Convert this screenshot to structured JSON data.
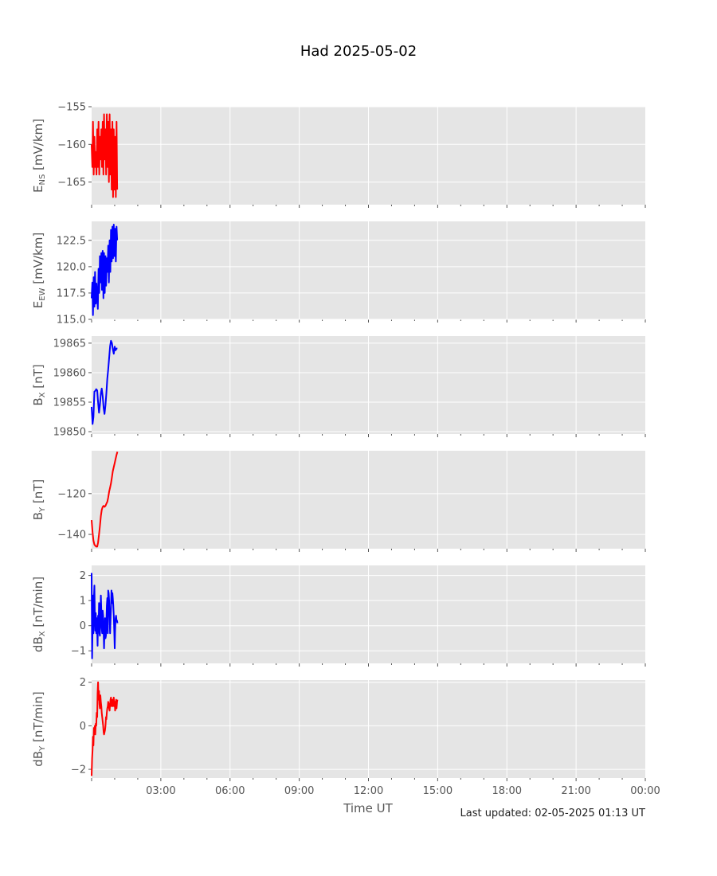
{
  "title": "Had 2025-05-02",
  "xlabel": "Time UT",
  "last_updated": "Last updated: 02-05-2025 01:13 UT",
  "colors": {
    "background": "#e5e5e5",
    "grid": "#ffffff",
    "red": "#ff0000",
    "blue": "#0000ff"
  },
  "chart_data": [
    {
      "type": "line",
      "ylabel": {
        "main": "E",
        "sub": "NS",
        "unit": " [mV/km]"
      },
      "color": "#ff0000",
      "xlim": [
        0,
        24
      ],
      "ylim": [
        -168,
        -155
      ],
      "yticks": [
        -155,
        -160,
        -165
      ],
      "ytick_labels": [
        "−155",
        "−160",
        "−165"
      ],
      "series": [
        {
          "x": [
            0.0,
            0.03,
            0.06,
            0.09,
            0.12,
            0.15,
            0.18,
            0.21,
            0.24,
            0.27,
            0.3,
            0.33,
            0.36,
            0.39,
            0.42,
            0.45,
            0.48,
            0.51,
            0.54,
            0.57,
            0.6,
            0.63,
            0.66,
            0.69,
            0.72,
            0.75,
            0.78,
            0.81,
            0.84,
            0.87,
            0.9,
            0.93,
            0.96,
            0.99,
            1.02,
            1.05,
            1.08,
            1.11
          ],
          "y": [
            -160,
            -163,
            -157,
            -164,
            -159,
            -163,
            -161,
            -164,
            -158,
            -163,
            -157,
            -164,
            -159,
            -162,
            -158,
            -163,
            -157,
            -164,
            -156,
            -162,
            -158,
            -164,
            -156,
            -163,
            -157,
            -165,
            -156,
            -164,
            -158,
            -166,
            -157,
            -167,
            -158,
            -166,
            -159,
            -167,
            -157,
            -166
          ]
        }
      ]
    },
    {
      "type": "line",
      "ylabel": {
        "main": "E",
        "sub": "EW",
        "unit": " [mV/km]"
      },
      "color": "#0000ff",
      "xlim": [
        0,
        24
      ],
      "ylim": [
        115,
        124.3
      ],
      "yticks": [
        115.0,
        117.5,
        120.0,
        122.5
      ],
      "ytick_labels": [
        "115.0",
        "117.5",
        "120.0",
        "122.5"
      ],
      "series": [
        {
          "x": [
            0.0,
            0.03,
            0.06,
            0.09,
            0.12,
            0.15,
            0.18,
            0.21,
            0.24,
            0.27,
            0.3,
            0.33,
            0.36,
            0.39,
            0.42,
            0.45,
            0.48,
            0.51,
            0.54,
            0.57,
            0.6,
            0.63,
            0.66,
            0.69,
            0.72,
            0.75,
            0.78,
            0.81,
            0.84,
            0.87,
            0.9,
            0.93,
            0.96,
            0.99,
            1.02,
            1.05,
            1.08,
            1.11
          ],
          "y": [
            117,
            118.5,
            115.4,
            119,
            116.2,
            119.5,
            116.5,
            118.4,
            117,
            116,
            119.8,
            117.5,
            121,
            118.5,
            121.3,
            117.8,
            121.5,
            117,
            121.3,
            117.5,
            121,
            118.2,
            120.8,
            119.5,
            122,
            118.5,
            122.5,
            119.5,
            123.5,
            120.5,
            123.8,
            120.8,
            124,
            121,
            123.6,
            120.5,
            123.8,
            122.5
          ]
        }
      ]
    },
    {
      "type": "line",
      "ylabel": {
        "main": "B",
        "sub": "X",
        "unit": " [nT]"
      },
      "color": "#0000ff",
      "xlim": [
        0,
        24
      ],
      "ylim": [
        19849.6,
        19866.2
      ],
      "yticks": [
        19850,
        19855,
        19860,
        19865
      ],
      "ytick_labels": [
        "19850",
        "19855",
        "19860",
        "19865"
      ],
      "series": [
        {
          "x": [
            0.0,
            0.04,
            0.08,
            0.12,
            0.16,
            0.2,
            0.24,
            0.28,
            0.32,
            0.36,
            0.4,
            0.44,
            0.48,
            0.52,
            0.56,
            0.6,
            0.64,
            0.68,
            0.72,
            0.76,
            0.8,
            0.84,
            0.88,
            0.92,
            0.96,
            1.0,
            1.04,
            1.08,
            1.12
          ],
          "y": [
            19854.2,
            19851.3,
            19852.5,
            19856.8,
            19856.9,
            19857.2,
            19857,
            19855,
            19853.2,
            19854.5,
            19856.5,
            19857.3,
            19856,
            19854,
            19853,
            19854.5,
            19856.5,
            19859,
            19860.5,
            19862.5,
            19864.5,
            19865.4,
            19865,
            19864,
            19863.2,
            19864.4,
            19863.8,
            19864.1,
            19864.1
          ]
        }
      ]
    },
    {
      "type": "line",
      "ylabel": {
        "main": "B",
        "sub": "Y",
        "unit": " [nT]"
      },
      "color": "#ff0000",
      "xlim": [
        0,
        24
      ],
      "ylim": [
        -147,
        -99
      ],
      "yticks": [
        -120,
        -140
      ],
      "ytick_labels": [
        "−120",
        "−140"
      ],
      "series": [
        {
          "x": [
            0.0,
            0.04,
            0.08,
            0.12,
            0.16,
            0.2,
            0.24,
            0.28,
            0.32,
            0.36,
            0.4,
            0.44,
            0.48,
            0.52,
            0.56,
            0.6,
            0.64,
            0.68,
            0.72,
            0.76,
            0.8,
            0.84,
            0.88,
            0.92,
            0.96,
            1.0,
            1.04,
            1.08,
            1.12
          ],
          "y": [
            -133,
            -139,
            -143,
            -145,
            -145.5,
            -146,
            -146,
            -144,
            -140,
            -136,
            -131,
            -128,
            -126.5,
            -126,
            -126.5,
            -126,
            -125,
            -124,
            -122,
            -119,
            -117,
            -115,
            -112,
            -109,
            -107,
            -105,
            -103,
            -101,
            -99.5
          ]
        }
      ]
    },
    {
      "type": "line",
      "ylabel": {
        "main": "dB",
        "sub": "X",
        "unit": " [nT/min]"
      },
      "color": "#0000ff",
      "xlim": [
        0,
        24
      ],
      "ylim": [
        -1.5,
        2.4
      ],
      "yticks": [
        2,
        1,
        0,
        -1
      ],
      "ytick_labels": [
        "2",
        "1",
        "0",
        "−1"
      ],
      "series": [
        {
          "x": [
            0.0,
            0.02,
            0.04,
            0.06,
            0.08,
            0.1,
            0.12,
            0.14,
            0.16,
            0.18,
            0.2,
            0.22,
            0.24,
            0.26,
            0.28,
            0.3,
            0.32,
            0.34,
            0.36,
            0.38,
            0.4,
            0.42,
            0.44,
            0.46,
            0.48,
            0.5,
            0.52,
            0.54,
            0.56,
            0.58,
            0.6,
            0.62,
            0.64,
            0.66,
            0.68,
            0.7,
            0.72,
            0.74,
            0.76,
            0.78,
            0.8,
            0.82,
            0.84,
            0.86,
            0.88,
            0.9,
            0.92,
            0.94,
            0.96,
            0.98,
            1.0,
            1.02,
            1.04,
            1.06,
            1.08,
            1.1,
            1.12
          ],
          "y": [
            2.1,
            -1.3,
            -0.1,
            1.2,
            -0.3,
            1.1,
            1.6,
            0.3,
            -0.2,
            0.5,
            -0.3,
            0.3,
            -0.2,
            -0.8,
            0.4,
            -0.1,
            0.9,
            -0.3,
            -0.4,
            0.4,
            1.2,
            0.6,
            -0.1,
            -0.3,
            0.6,
            0.4,
            -0.3,
            -0.9,
            -0.2,
            0.3,
            -0.5,
            -0.4,
            0.1,
            0.8,
            1.1,
            -0.3,
            1.4,
            1.3,
            1.0,
            0.3,
            -0.3,
            0.2,
            0.7,
            1.4,
            0.9,
            1.3,
            1.1,
            0.8,
            0.4,
            -0.2,
            -0.9,
            -0.2,
            0.3,
            0.4,
            0.2,
            0.2,
            0.1
          ]
        }
      ]
    },
    {
      "type": "line",
      "ylabel": {
        "main": "dB",
        "sub": "Y",
        "unit": " [nT/min]"
      },
      "color": "#ff0000",
      "xlim": [
        0,
        24
      ],
      "ylim": [
        -2.4,
        2.1
      ],
      "yticks": [
        2,
        0,
        -2
      ],
      "ytick_labels": [
        "2",
        "0",
        "−2"
      ],
      "series": [
        {
          "x": [
            0.0,
            0.02,
            0.04,
            0.06,
            0.08,
            0.1,
            0.12,
            0.14,
            0.16,
            0.18,
            0.2,
            0.22,
            0.24,
            0.26,
            0.28,
            0.3,
            0.32,
            0.34,
            0.36,
            0.38,
            0.4,
            0.42,
            0.44,
            0.46,
            0.48,
            0.5,
            0.52,
            0.54,
            0.56,
            0.58,
            0.6,
            0.62,
            0.64,
            0.66,
            0.68,
            0.7,
            0.72,
            0.74,
            0.76,
            0.78,
            0.8,
            0.82,
            0.84,
            0.86,
            0.88,
            0.9,
            0.92,
            0.94,
            0.96,
            0.98,
            1.0,
            1.02,
            1.04,
            1.06,
            1.08,
            1.1,
            1.12
          ],
          "y": [
            -2.3,
            -1.5,
            -1.1,
            -0.5,
            -0.9,
            -0.1,
            -0.2,
            0.0,
            -0.4,
            0.1,
            0.0,
            0.6,
            0.4,
            1.5,
            2.0,
            1.2,
            1.6,
            1.0,
            0.8,
            1.4,
            1.1,
            0.9,
            0.6,
            0.4,
            0.2,
            0.0,
            -0.3,
            -0.4,
            -0.3,
            -0.2,
            0.0,
            0.4,
            0.3,
            0.6,
            0.8,
            0.9,
            1.1,
            1.0,
            0.8,
            0.7,
            1.0,
            1.2,
            1.3,
            0.9,
            1.1,
            1.2,
            0.9,
            1.0,
            1.3,
            0.9,
            1.1,
            0.7,
            1.0,
            1.2,
            0.8,
            1.1,
            1.2
          ]
        }
      ]
    }
  ],
  "x_axis": {
    "ticks": [
      3,
      6,
      9,
      12,
      15,
      18,
      21,
      24
    ],
    "labels": [
      "03:00",
      "06:00",
      "09:00",
      "12:00",
      "15:00",
      "18:00",
      "21:00",
      "00:00"
    ]
  }
}
